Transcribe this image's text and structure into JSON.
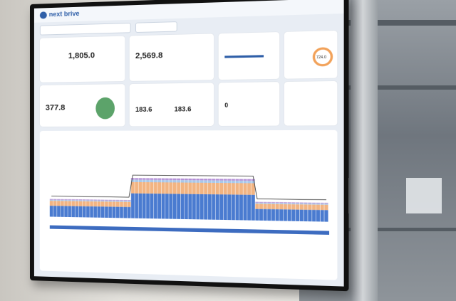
{
  "app": {
    "logo": "next brive"
  },
  "header": {
    "title": ""
  },
  "filters": {
    "plant": "",
    "period": ""
  },
  "cards": {
    "c1": {
      "label": "",
      "value": "1,805.0"
    },
    "c2": {
      "label": "",
      "value": "2,569.8"
    },
    "c3": {
      "label": ""
    },
    "c4": {
      "label": "",
      "value": "724.0"
    },
    "c5": {
      "label": "",
      "value": "377.8"
    },
    "c6": {
      "label": "",
      "value_a": "183.6",
      "value_b": "183.6"
    },
    "c7": {
      "label": "",
      "value": "0"
    }
  },
  "chart_data": {
    "type": "bar",
    "title": "",
    "series": [
      {
        "name": "",
        "color": "#4a7bd0"
      },
      {
        "name": "",
        "color": "#f2b482"
      },
      {
        "name": "",
        "color": "#a8c8ea"
      },
      {
        "name": "",
        "color": "#b48fd6"
      }
    ],
    "note": "Stacked bars with an overlaid line; values not legible"
  }
}
